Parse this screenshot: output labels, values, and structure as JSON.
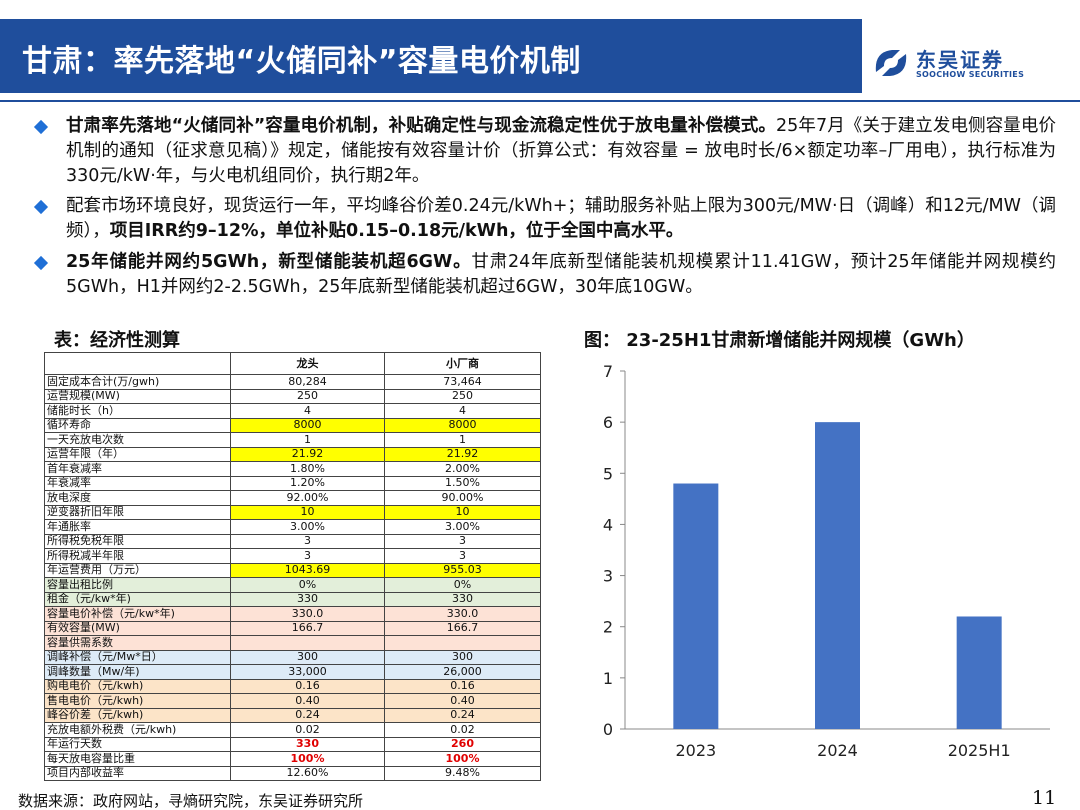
{
  "header": {
    "title": "甘肃：率先落地“火储同补”容量电价机制",
    "logo_name": "东吴证券",
    "logo_en": "SOOCHOW SECURITIES",
    "colors": {
      "brand": "#1F4E9C",
      "bullet": "#1F6FD6",
      "bar": "#4472C4"
    }
  },
  "bullets": [
    {
      "bold": "甘肃率先落地“火储同补”容量电价机制，补贴确定性与现金流稳定性优于放电量补偿模式。",
      "text": "25年7月《关于建立发电侧容量电价机制的通知（征求意见稿）》规定，储能按有效容量计价（折算公式：有效容量 = 放电时长/6×额定功率–厂用电），执行标准为330元/kW·年，与火电机组同价，执行期2年。"
    },
    {
      "text": "配套市场环境良好，现货运行一年，平均峰谷价差0.24元/kWh+；辅助服务补贴上限为300元/MW·日（调峰）和12元/MW（调频），",
      "bold": "项目IRR约9–12%，单位补贴0.15–0.18元/kWh，位于全国中高水平。"
    },
    {
      "bold": "25年储能并网约5GWh，新型储能装机超6GW。",
      "text": "甘肃24年底新型储能装机规模累计11.41GW，预计25年储能并网规模约5GWh，H1并网约2-2.5GWh，25年底新型储能装机超过6GW，30年底10GW。"
    }
  ],
  "table": {
    "title": "表：经济性测算",
    "headers": [
      "",
      "龙头",
      "小厂商"
    ],
    "rows": [
      {
        "label": "固定成本合计(万/gwh)",
        "a": "80,284",
        "b": "73,464",
        "style": ""
      },
      {
        "label": "运营规模(MW)",
        "a": "250",
        "b": "250",
        "style": ""
      },
      {
        "label": "储能时长（h）",
        "a": "4",
        "b": "4",
        "style": ""
      },
      {
        "label": "循环寿命",
        "a": "8000",
        "b": "8000",
        "style": "y"
      },
      {
        "label": "一天充放电次数",
        "a": "1",
        "b": "1",
        "style": ""
      },
      {
        "label": "运营年限（年）",
        "a": "21.92",
        "b": "21.92",
        "style": "y"
      },
      {
        "label": "首年衰减率",
        "a": "1.80%",
        "b": "2.00%",
        "style": ""
      },
      {
        "label": "年衰减率",
        "a": "1.20%",
        "b": "1.50%",
        "style": ""
      },
      {
        "label": "放电深度",
        "a": "92.00%",
        "b": "90.00%",
        "style": ""
      },
      {
        "label": "逆变器折旧年限",
        "a": "10",
        "b": "10",
        "style": "y"
      },
      {
        "label": "年通胀率",
        "a": "3.00%",
        "b": "3.00%",
        "style": ""
      },
      {
        "label": "所得税免税年限",
        "a": "3",
        "b": "3",
        "style": ""
      },
      {
        "label": "所得税减半年限",
        "a": "3",
        "b": "3",
        "style": ""
      },
      {
        "label": "年运营费用（万元）",
        "a": "1043.69",
        "b": "955.03",
        "style": "y"
      },
      {
        "label": "容量出租比例",
        "a": "0%",
        "b": "0%",
        "style": "gr"
      },
      {
        "label": "租金（元/kw*年)",
        "a": "330",
        "b": "330",
        "style": "gr"
      },
      {
        "label": "容量电价补偿（元/kw*年)",
        "a": "330.0",
        "b": "330.0",
        "style": "pk"
      },
      {
        "label": "有效容量(MW)",
        "a": "166.7",
        "b": "166.7",
        "style": "pk"
      },
      {
        "label": "容量供需系数",
        "a": "",
        "b": "",
        "style": "pk"
      },
      {
        "label": "调峰补偿（元/Mw*日）",
        "a": "300",
        "b": "300",
        "style": "bl"
      },
      {
        "label": "调峰数量（Mw/年)",
        "a": "33,000",
        "b": "26,000",
        "style": "bl"
      },
      {
        "label": "购电电价（元/kwh)",
        "a": "0.16",
        "b": "0.16",
        "style": "or"
      },
      {
        "label": "售电电价（元/kwh)",
        "a": "0.40",
        "b": "0.40",
        "style": "or"
      },
      {
        "label": "峰谷价差（元/kwh)",
        "a": "0.24",
        "b": "0.24",
        "style": "or"
      },
      {
        "label": "充放电额外税费（元/kwh)",
        "a": "0.02",
        "b": "0.02",
        "style": ""
      },
      {
        "label": "年运行天数",
        "a": "330",
        "b": "260",
        "style": "red"
      },
      {
        "label": "每天放电容量比重",
        "a": "100%",
        "b": "100%",
        "style": "red"
      },
      {
        "label": "项目内部收益率",
        "a": "12.60%",
        "b": "9.48%",
        "style": ""
      }
    ]
  },
  "chart_title": "图： 23-25H1甘肃新增储能并网规模（GWh）",
  "chart_data": {
    "type": "bar",
    "categories": [
      "2023",
      "2024",
      "2025H1"
    ],
    "values": [
      4.8,
      6.0,
      2.2
    ],
    "ylim": [
      0,
      7
    ],
    "yticks": [
      "0",
      "1",
      "2",
      "3",
      "4",
      "5",
      "6",
      "7"
    ],
    "grid": false,
    "bar_color": "#4472C4"
  },
  "footer": {
    "source": "数据来源：政府网站，寻熵研究院，东吴证券研究所",
    "page": "11"
  }
}
